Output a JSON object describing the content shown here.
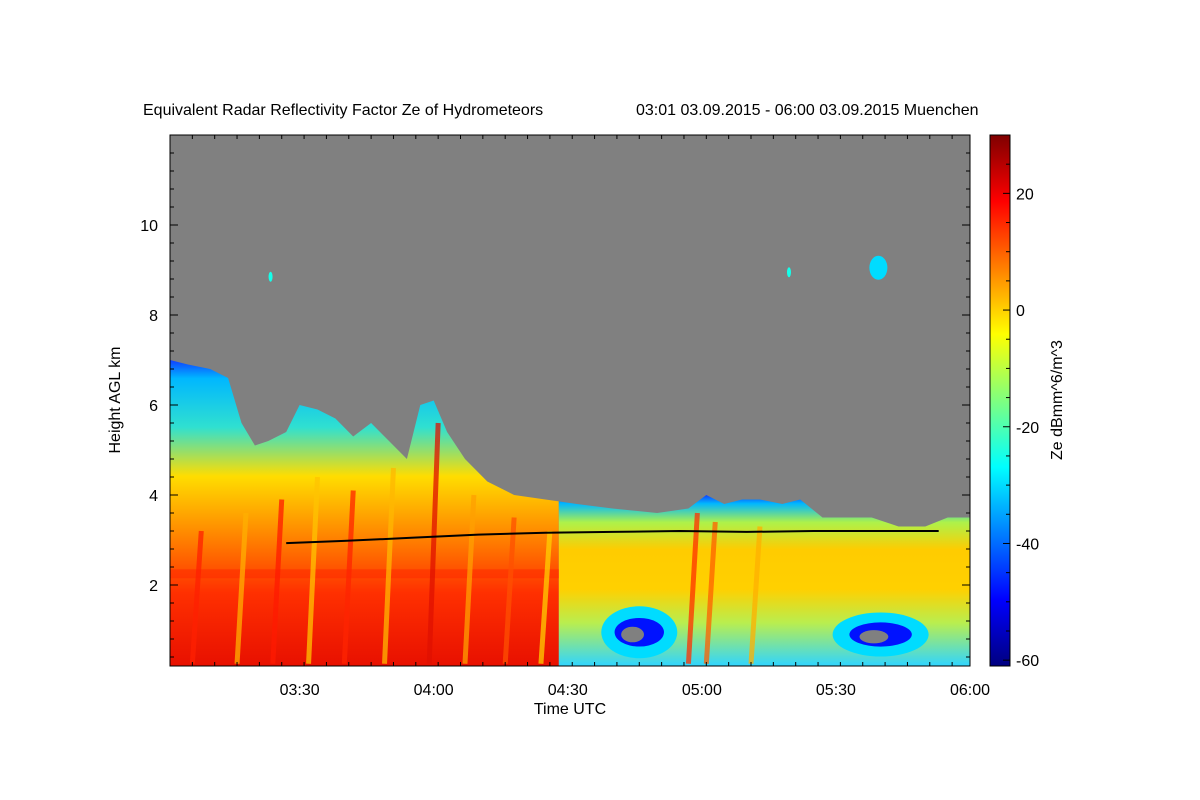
{
  "chart_data": {
    "type": "heatmap",
    "title": "Equivalent Radar Reflectivity Factor Ze of Hydrometeors",
    "period_label": "03:01 03.09.2015 - 06:00 03.09.2015 Muenchen",
    "xlabel": "Time UTC",
    "ylabel": "Height AGL km",
    "colorbar_label": "Ze dBmm^6/m^3",
    "x_range_minutes_utc": [
      181,
      360
    ],
    "y_range_km": [
      0.2,
      12.0
    ],
    "x_ticks": [
      {
        "label": "03:30",
        "minute": 210
      },
      {
        "label": "04:00",
        "minute": 240
      },
      {
        "label": "04:30",
        "minute": 270
      },
      {
        "label": "05:00",
        "minute": 300
      },
      {
        "label": "05:30",
        "minute": 330
      },
      {
        "label": "06:00",
        "minute": 360
      }
    ],
    "y_ticks": [
      2,
      4,
      6,
      8,
      10
    ],
    "colorbar_range_dbz": [
      -61,
      30
    ],
    "colorbar_ticks": [
      20,
      0,
      -20,
      -40,
      -60
    ],
    "colormap": [
      "#00007f",
      "#0000ff",
      "#007fff",
      "#00ffff",
      "#7fff7f",
      "#ffff00",
      "#ff7f00",
      "#ff0000",
      "#7f0000"
    ],
    "no_signal_color": "#808080",
    "echo_top_km": [
      {
        "t": 181,
        "h": 7.0
      },
      {
        "t": 185,
        "h": 6.9
      },
      {
        "t": 190,
        "h": 6.8
      },
      {
        "t": 194,
        "h": 6.6
      },
      {
        "t": 197,
        "h": 5.6
      },
      {
        "t": 200,
        "h": 5.1
      },
      {
        "t": 203,
        "h": 5.2
      },
      {
        "t": 207,
        "h": 5.4
      },
      {
        "t": 210,
        "h": 6.0
      },
      {
        "t": 214,
        "h": 5.9
      },
      {
        "t": 218,
        "h": 5.7
      },
      {
        "t": 222,
        "h": 5.3
      },
      {
        "t": 226,
        "h": 5.6
      },
      {
        "t": 230,
        "h": 5.2
      },
      {
        "t": 234,
        "h": 4.8
      },
      {
        "t": 237,
        "h": 6.0
      },
      {
        "t": 240,
        "h": 6.1
      },
      {
        "t": 243,
        "h": 5.4
      },
      {
        "t": 247,
        "h": 4.8
      },
      {
        "t": 252,
        "h": 4.3
      },
      {
        "t": 258,
        "h": 4.0
      },
      {
        "t": 265,
        "h": 3.9
      },
      {
        "t": 272,
        "h": 3.8
      },
      {
        "t": 280,
        "h": 3.7
      },
      {
        "t": 290,
        "h": 3.6
      },
      {
        "t": 297,
        "h": 3.7
      },
      {
        "t": 301,
        "h": 4.0
      },
      {
        "t": 305,
        "h": 3.8
      },
      {
        "t": 309,
        "h": 3.9
      },
      {
        "t": 313,
        "h": 3.9
      },
      {
        "t": 318,
        "h": 3.8
      },
      {
        "t": 322,
        "h": 3.9
      },
      {
        "t": 327,
        "h": 3.5
      },
      {
        "t": 332,
        "h": 3.5
      },
      {
        "t": 338,
        "h": 3.5
      },
      {
        "t": 344,
        "h": 3.3
      },
      {
        "t": 350,
        "h": 3.3
      },
      {
        "t": 355,
        "h": 3.5
      },
      {
        "t": 360,
        "h": 3.5
      }
    ],
    "melting_layer_km": [
      {
        "t": 207,
        "h": 2.93
      },
      {
        "t": 220,
        "h": 2.98
      },
      {
        "t": 235,
        "h": 3.05
      },
      {
        "t": 250,
        "h": 3.12
      },
      {
        "t": 265,
        "h": 3.16
      },
      {
        "t": 280,
        "h": 3.18
      },
      {
        "t": 295,
        "h": 3.2
      },
      {
        "t": 310,
        "h": 3.18
      },
      {
        "t": 325,
        "h": 3.2
      },
      {
        "t": 340,
        "h": 3.2
      },
      {
        "t": 353,
        "h": 3.2
      }
    ],
    "isolated_echoes": [
      {
        "t": 203.5,
        "h": 8.85,
        "dbz": -25
      },
      {
        "t": 319.5,
        "h": 8.95,
        "dbz": -25
      },
      {
        "t": 339.5,
        "h": 9.05,
        "dbz": -30
      }
    ]
  }
}
